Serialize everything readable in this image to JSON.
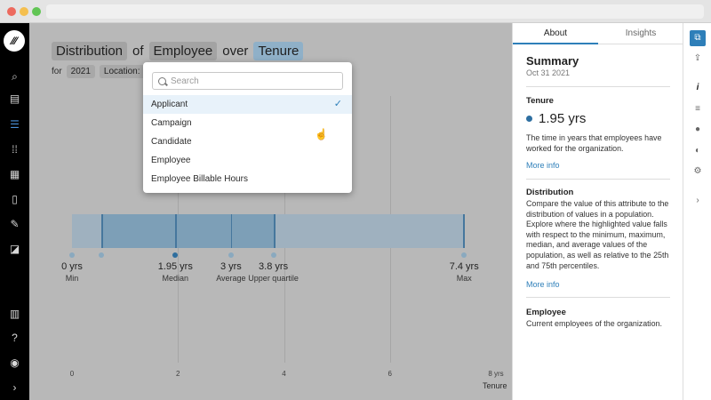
{
  "header": {
    "title_parts": {
      "measure": "Distribution",
      "of": "of",
      "population": "Employee",
      "over": "over",
      "attribute": "Tenure"
    },
    "filters": {
      "for_label": "for",
      "year": "2021",
      "location": "Location: No"
    }
  },
  "chart_data": {
    "type": "box",
    "xlabel": "Tenure",
    "x_ticks": [
      "0",
      "2",
      "4",
      "6",
      "8 yrs"
    ],
    "xlim": [
      0,
      8
    ],
    "markers": [
      {
        "value": 0,
        "display": "0 yrs",
        "label": "Min"
      },
      {
        "value": 1.95,
        "display": "1.95 yrs",
        "label": "Median"
      },
      {
        "value": 3,
        "display": "3 yrs",
        "label": "Average"
      },
      {
        "value": 3.8,
        "display": "3.8 yrs",
        "label": "Upper quartile"
      },
      {
        "value": 7.4,
        "display": "7.4 yrs",
        "label": "Max"
      }
    ],
    "lower_quartile": 0.55,
    "highlight_value": 1.95
  },
  "dropdown": {
    "search_placeholder": "Search",
    "items": [
      {
        "label": "Applicant",
        "selected": true
      },
      {
        "label": "Campaign"
      },
      {
        "label": "Candidate"
      },
      {
        "label": "Employee"
      },
      {
        "label": "Employee Billable Hours"
      }
    ]
  },
  "panel": {
    "tabs": [
      "About",
      "Insights"
    ],
    "summary_title": "Summary",
    "summary_date": "Oct 31 2021",
    "tenure_heading": "Tenure",
    "tenure_value": "1.95 yrs",
    "tenure_desc": "The time in years that employees have worked for the organization.",
    "more_info": "More info",
    "distribution_heading": "Distribution",
    "distribution_desc": "Compare the value of this attribute to the distribution of values in a population. Explore where the highlighted value falls with respect to the minimum, maximum, median, and average values of the population, as well as relative to the 25th and 75th percentiles.",
    "more_info_2": "More info",
    "employee_heading": "Employee",
    "employee_desc": "Current employees of the organization."
  },
  "icons": {
    "sidebar": [
      "logo-icon",
      "search-icon",
      "book-icon",
      "bars-icon",
      "grid-dots-icon",
      "tiles-icon",
      "cards-icon",
      "pen-icon",
      "arrow-box-icon",
      "chart-icon",
      "help-icon",
      "user-icon",
      "chevron-right-icon"
    ],
    "rail": [
      "scan-icon",
      "upload-icon",
      "info-icon",
      "list-add-icon",
      "alert-icon",
      "palette-icon",
      "gear-icon",
      "chevron-right-icon"
    ]
  },
  "colors": {
    "accent": "#2e7fb9",
    "highlight_chip": "#8fb0c8"
  }
}
